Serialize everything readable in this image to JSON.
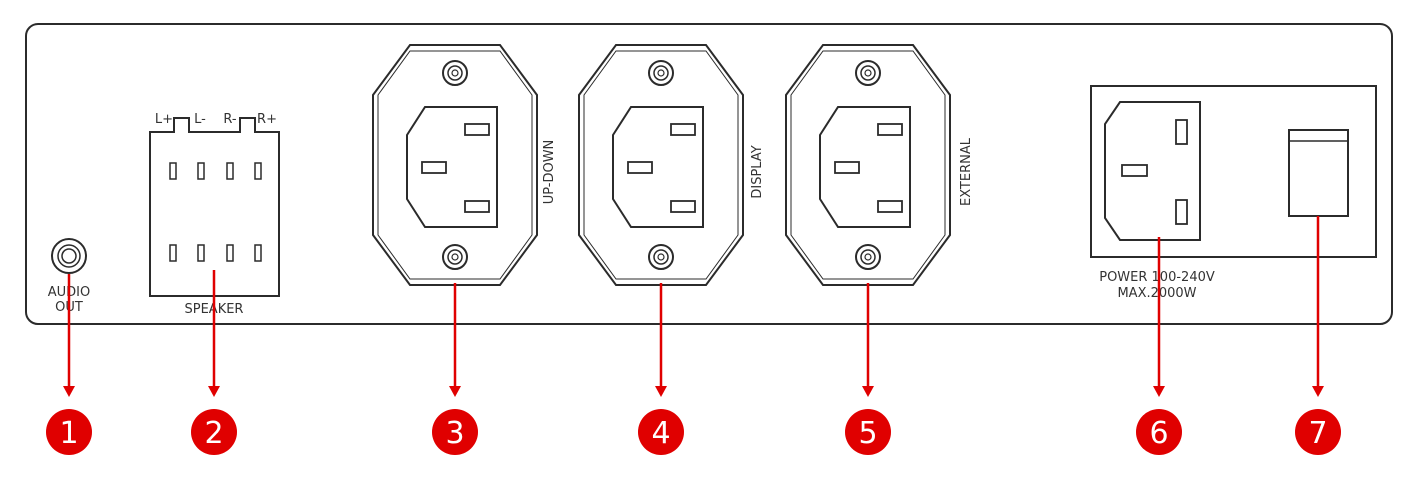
{
  "colors": {
    "outline": "#2b2b2b",
    "accent": "#e00000",
    "badge_text": "#ffffff",
    "background": "#ffffff"
  },
  "labels": {
    "audio_out_line1": "AUDIO",
    "audio_out_line2": "OUT",
    "speaker_l_plus": "L+",
    "speaker_l_minus": "L-",
    "speaker_r_minus": "R-",
    "speaker_r_plus": "R+",
    "speaker": "SPEAKER",
    "outlet_updown": "UP-DOWN",
    "outlet_display": "DISPLAY",
    "outlet_external": "EXTERNAL",
    "power_line1": "POWER 100-240V",
    "power_line2": "MAX.2000W"
  },
  "callouts": [
    "1",
    "2",
    "3",
    "4",
    "5",
    "6",
    "7"
  ]
}
